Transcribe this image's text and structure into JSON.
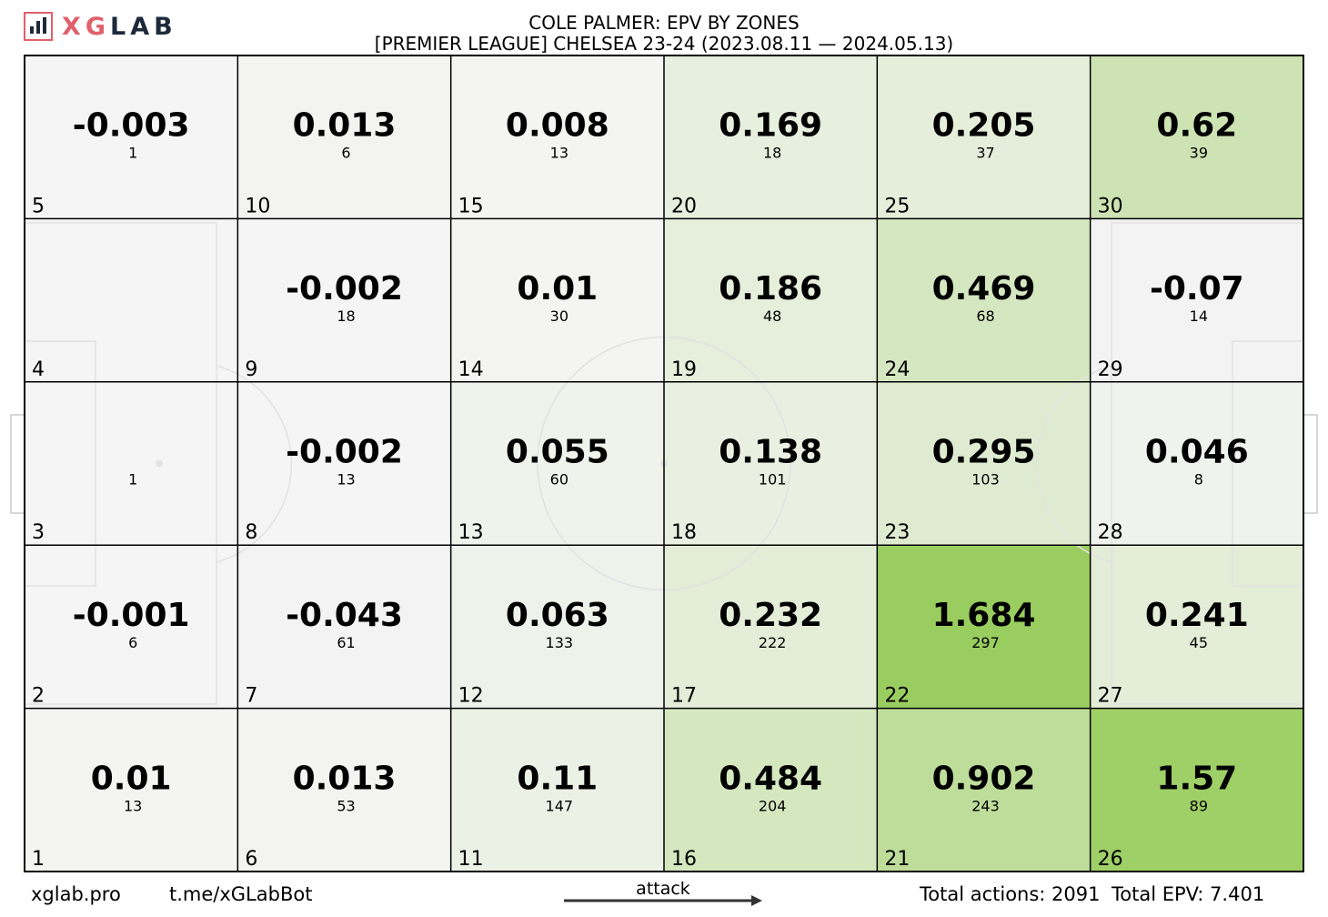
{
  "logo": {
    "x": "X",
    "g": "G",
    "rest": "LAB"
  },
  "title": "COLE PALMER: EPV BY ZONES",
  "subtitle": "[PREMIER LEAGUE] CHELSEA 23-24 (2023.08.11 — 2024.05.13)",
  "footer": {
    "site": "xglab.pro",
    "bot": "t.me/xGLabBot",
    "direction": "attack",
    "total_actions": "Total actions: 2091",
    "total_epv": "Total EPV: 7.401"
  },
  "colors": {
    "neutral": "#f5f5f5",
    "negative": "#f3f3f4",
    "high": "#9acd5f",
    "grid": "#000000",
    "pitch_lines": "#e2e2e2"
  },
  "chart_data": {
    "type": "heatmap",
    "title": "COLE PALMER: EPV BY ZONES",
    "layout": "6 columns x 5 rows; zones numbered bottom-to-top within columns, columns left-to-right; attack left to right",
    "zones": [
      {
        "zone": 5,
        "epv": "-0.003",
        "actions": "1"
      },
      {
        "zone": 10,
        "epv": "0.013",
        "actions": "6"
      },
      {
        "zone": 15,
        "epv": "0.008",
        "actions": "13"
      },
      {
        "zone": 20,
        "epv": "0.169",
        "actions": "18"
      },
      {
        "zone": 25,
        "epv": "0.205",
        "actions": "37"
      },
      {
        "zone": 30,
        "epv": "0.62",
        "actions": "39"
      },
      {
        "zone": 4,
        "epv": "",
        "actions": ""
      },
      {
        "zone": 9,
        "epv": "-0.002",
        "actions": "18"
      },
      {
        "zone": 14,
        "epv": "0.01",
        "actions": "30"
      },
      {
        "zone": 19,
        "epv": "0.186",
        "actions": "48"
      },
      {
        "zone": 24,
        "epv": "0.469",
        "actions": "68"
      },
      {
        "zone": 29,
        "epv": "-0.07",
        "actions": "14"
      },
      {
        "zone": 3,
        "epv": "",
        "actions": "1"
      },
      {
        "zone": 8,
        "epv": "-0.002",
        "actions": "13"
      },
      {
        "zone": 13,
        "epv": "0.055",
        "actions": "60"
      },
      {
        "zone": 18,
        "epv": "0.138",
        "actions": "101"
      },
      {
        "zone": 23,
        "epv": "0.295",
        "actions": "103"
      },
      {
        "zone": 28,
        "epv": "0.046",
        "actions": "8"
      },
      {
        "zone": 2,
        "epv": "-0.001",
        "actions": "6"
      },
      {
        "zone": 7,
        "epv": "-0.043",
        "actions": "61"
      },
      {
        "zone": 12,
        "epv": "0.063",
        "actions": "133"
      },
      {
        "zone": 17,
        "epv": "0.232",
        "actions": "222"
      },
      {
        "zone": 22,
        "epv": "1.684",
        "actions": "297"
      },
      {
        "zone": 27,
        "epv": "0.241",
        "actions": "45"
      },
      {
        "zone": 1,
        "epv": "0.01",
        "actions": "13"
      },
      {
        "zone": 6,
        "epv": "0.013",
        "actions": "53"
      },
      {
        "zone": 11,
        "epv": "0.11",
        "actions": "147"
      },
      {
        "zone": 16,
        "epv": "0.484",
        "actions": "204"
      },
      {
        "zone": 21,
        "epv": "0.902",
        "actions": "243"
      },
      {
        "zone": 26,
        "epv": "1.57",
        "actions": "89"
      }
    ],
    "total_actions": 2091,
    "total_epv": 7.401
  }
}
